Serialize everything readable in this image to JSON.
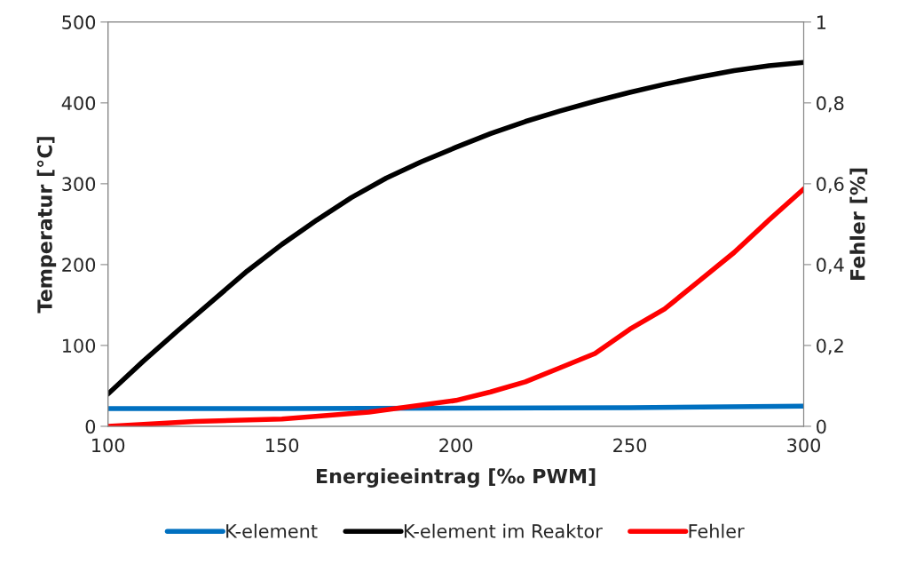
{
  "chart_data": {
    "type": "line",
    "xlabel": "Energieeintrag [‰ PWM]",
    "ylabel": "Temperatur [°C]",
    "y2label": "Fehler [%]",
    "xlim": [
      100,
      300
    ],
    "xticks": [
      100,
      150,
      200,
      250,
      300
    ],
    "ylim": [
      0,
      500
    ],
    "yticks": [
      0,
      100,
      200,
      300,
      400,
      500
    ],
    "y2lim": [
      0,
      1
    ],
    "y2ticks": [
      {
        "value": 0,
        "label": "0"
      },
      {
        "value": 0.2,
        "label": "0,2"
      },
      {
        "value": 0.4,
        "label": "0,4"
      },
      {
        "value": 0.6,
        "label": "0,6"
      },
      {
        "value": 0.8,
        "label": "0,8"
      },
      {
        "value": 1,
        "label": "1"
      }
    ],
    "grid": false,
    "legend": "bottom",
    "marker": "none",
    "line_style": "solid",
    "series": [
      {
        "name": "K-element",
        "color": "#0070c0",
        "x": [
          100,
          150,
          200,
          250,
          300
        ],
        "values": [
          22,
          22,
          22.5,
          23,
          25
        ]
      },
      {
        "name": "K-element im Reaktor",
        "color": "#000000",
        "x": [
          100,
          110,
          120,
          130,
          140,
          150,
          160,
          170,
          180,
          190,
          200,
          210,
          220,
          230,
          240,
          250,
          260,
          270,
          280,
          290,
          300
        ],
        "values": [
          40,
          80,
          118,
          155,
          192,
          225,
          255,
          283,
          307,
          327,
          345,
          362,
          377,
          390,
          402,
          413,
          423,
          432,
          440,
          446,
          450
        ]
      },
      {
        "name": "Fehler",
        "color": "#ff0000",
        "axis": "y2",
        "x": [
          100,
          125,
          150,
          175,
          200,
          210,
          220,
          230,
          240,
          250,
          260,
          270,
          280,
          290,
          300
        ],
        "values": [
          0,
          0.012,
          0.018,
          0.035,
          0.064,
          0.085,
          0.11,
          0.145,
          0.18,
          0.24,
          0.29,
          0.36,
          0.43,
          0.51,
          0.587
        ]
      }
    ]
  }
}
